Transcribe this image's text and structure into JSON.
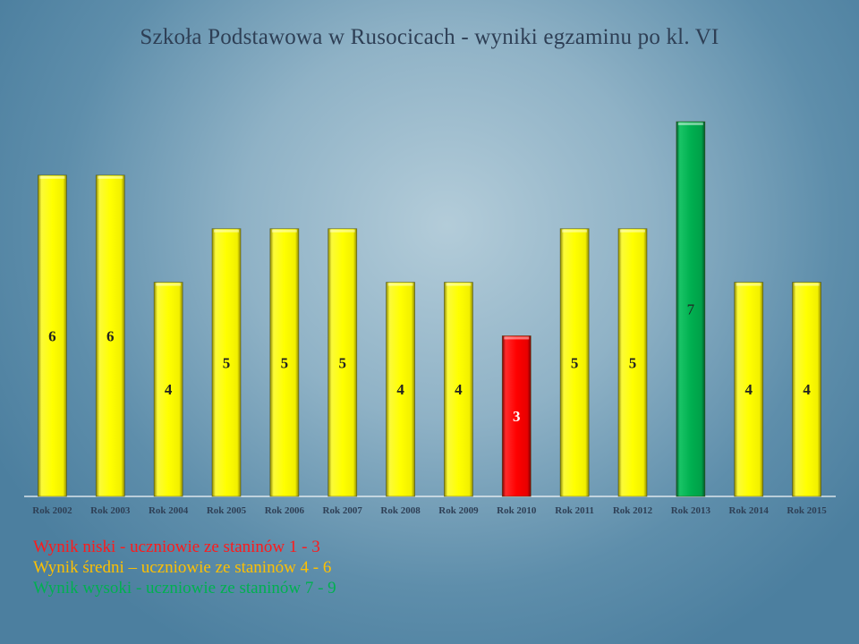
{
  "slide": {
    "title": "Szkoła Podstawowa w Rusocicach - wyniki egzaminu po kl. VI"
  },
  "legend": [
    {
      "text": "Wynik niski - uczniowie ze staninów 1 - 3",
      "color": "#ff1a1a"
    },
    {
      "text": "Wynik średni – uczniowie ze staninów 4 - 6",
      "color": "#ffc000"
    },
    {
      "text": "Wynik wysoki - uczniowie ze staninów 7 - 9",
      "color": "#00b050"
    }
  ],
  "colors": {
    "low": "#ff0000",
    "medium": "#ffff00",
    "high": "#00b050"
  },
  "chart_data": {
    "type": "bar",
    "title": "Szkoła Podstawowa w Rusocicach - wyniki egzaminu po kl. VI",
    "xlabel": "",
    "ylabel": "",
    "ylim": [
      0,
      7
    ],
    "grid": false,
    "categories": [
      "Rok 2002",
      "Rok 2003",
      "Rok 2004",
      "Rok 2005",
      "Rok 2006",
      "Rok 2007",
      "Rok 2008",
      "Rok 2009",
      "Rok 2010",
      "Rok 2011",
      "Rok 2012",
      "Rok 2013",
      "Rok 2014",
      "Rok 2015"
    ],
    "values": [
      6,
      6,
      4,
      5,
      5,
      5,
      4,
      4,
      3,
      5,
      5,
      7,
      4,
      4
    ],
    "bar_levels": [
      "medium",
      "medium",
      "medium",
      "medium",
      "medium",
      "medium",
      "medium",
      "medium",
      "low",
      "medium",
      "medium",
      "high",
      "medium",
      "medium"
    ]
  }
}
